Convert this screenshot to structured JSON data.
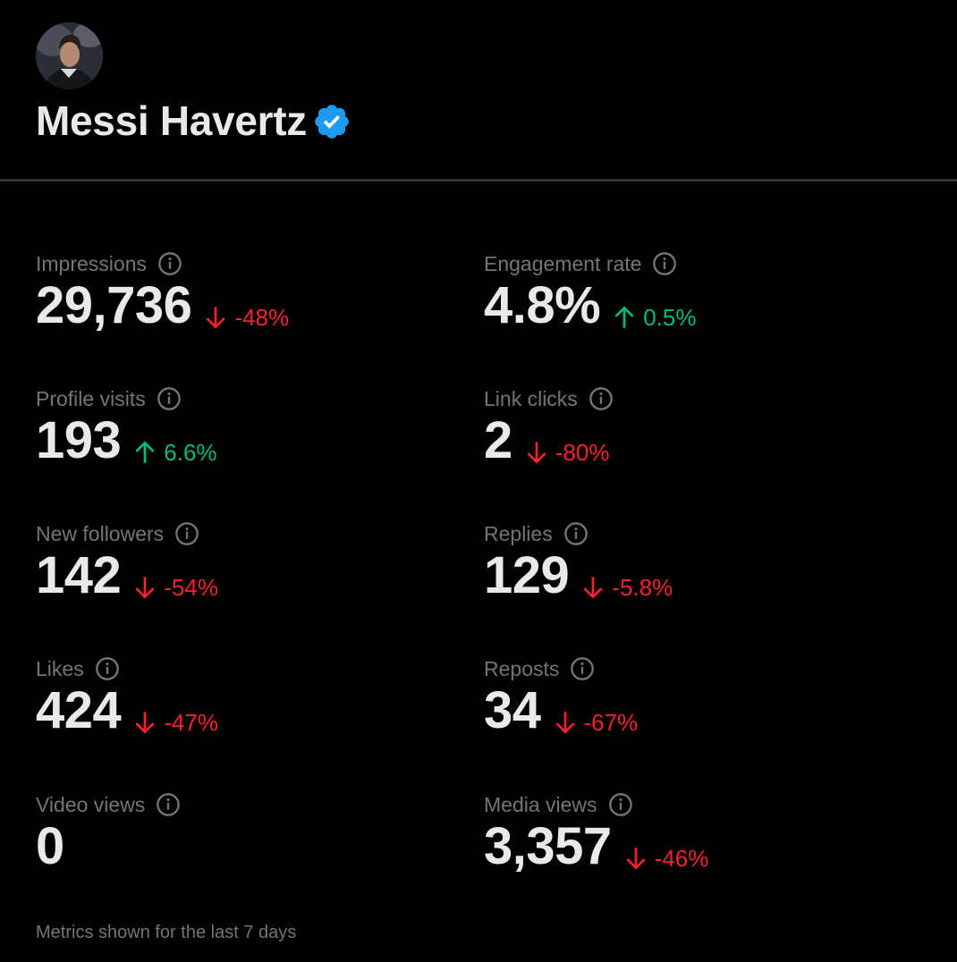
{
  "profile": {
    "display_name": "Messi Havertz",
    "verified": true,
    "avatar_icon": "profile-photo",
    "verified_color": "#1d9bf0"
  },
  "colors": {
    "background": "#000000",
    "primary_text": "#e7e9ea",
    "secondary_text": "#71767b",
    "negative": "#f4212e",
    "positive": "#00ba7c",
    "divider": "#2f3336"
  },
  "metrics": [
    {
      "id": "impressions",
      "label": "Impressions",
      "value": "29,736",
      "change": "-48%",
      "direction": "down"
    },
    {
      "id": "engagement-rate",
      "label": "Engagement rate",
      "value": "4.8%",
      "change": "0.5%",
      "direction": "up"
    },
    {
      "id": "profile-visits",
      "label": "Profile visits",
      "value": "193",
      "change": "6.6%",
      "direction": "up"
    },
    {
      "id": "link-clicks",
      "label": "Link clicks",
      "value": "2",
      "change": "-80%",
      "direction": "down"
    },
    {
      "id": "new-followers",
      "label": "New followers",
      "value": "142",
      "change": "-54%",
      "direction": "down"
    },
    {
      "id": "replies",
      "label": "Replies",
      "value": "129",
      "change": "-5.8%",
      "direction": "down"
    },
    {
      "id": "likes",
      "label": "Likes",
      "value": "424",
      "change": "-47%",
      "direction": "down"
    },
    {
      "id": "reposts",
      "label": "Reposts",
      "value": "34",
      "change": "-67%",
      "direction": "down"
    },
    {
      "id": "video-views",
      "label": "Video views",
      "value": "0",
      "change": null,
      "direction": null
    },
    {
      "id": "media-views",
      "label": "Media views",
      "value": "3,357",
      "change": "-46%",
      "direction": "down"
    }
  ],
  "footer": {
    "note": "Metrics shown for the last 7 days"
  }
}
